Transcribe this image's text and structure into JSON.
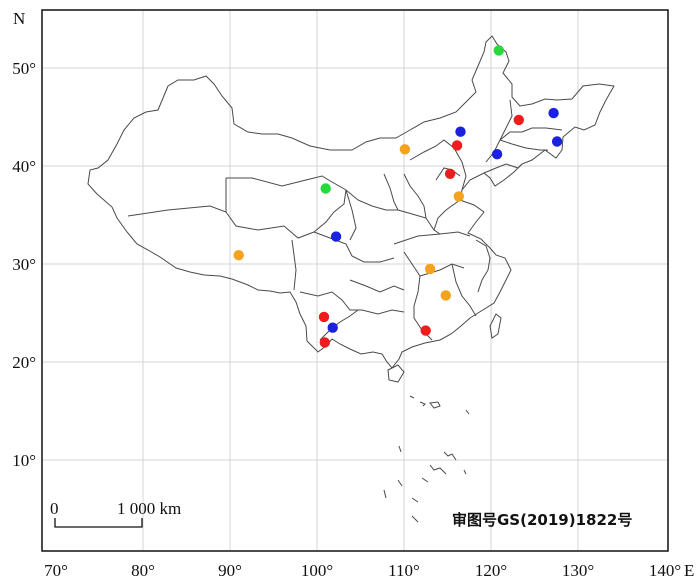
{
  "map": {
    "x_axis": {
      "ticks": [
        {
          "value": 70,
          "label": "70°"
        },
        {
          "value": 80,
          "label": "80°"
        },
        {
          "value": 90,
          "label": "90°"
        },
        {
          "value": 100,
          "label": "100°"
        },
        {
          "value": 110,
          "label": "110°"
        },
        {
          "value": 120,
          "label": "120°"
        },
        {
          "value": 130,
          "label": "130°"
        },
        {
          "value": 140,
          "label": "140°"
        }
      ],
      "letter": "E"
    },
    "y_axis": {
      "ticks": [
        {
          "value": 10,
          "label": "10°"
        },
        {
          "value": 20,
          "label": "20°"
        },
        {
          "value": 30,
          "label": "30°"
        },
        {
          "value": 40,
          "label": "40°"
        },
        {
          "value": 50,
          "label": "50°"
        }
      ],
      "letter": "N"
    },
    "scale_bar": {
      "start_label": "0",
      "end_label": "1 000 km"
    },
    "approval_number": "审图号GS(2019)1822号",
    "colors": {
      "red": "#ee1c1c",
      "blue": "#1a22dd",
      "orange": "#f5a21c",
      "green": "#27d93a"
    },
    "points": [
      {
        "lon": 120.9,
        "lat": 51.8,
        "color": "green"
      },
      {
        "lon": 101.0,
        "lat": 37.7,
        "color": "green"
      },
      {
        "lon": 116.5,
        "lat": 43.5,
        "color": "blue"
      },
      {
        "lon": 127.2,
        "lat": 45.4,
        "color": "blue"
      },
      {
        "lon": 127.6,
        "lat": 42.5,
        "color": "blue"
      },
      {
        "lon": 120.7,
        "lat": 41.2,
        "color": "blue"
      },
      {
        "lon": 102.2,
        "lat": 32.8,
        "color": "blue"
      },
      {
        "lon": 101.8,
        "lat": 23.5,
        "color": "blue"
      },
      {
        "lon": 123.2,
        "lat": 44.7,
        "color": "red"
      },
      {
        "lon": 116.1,
        "lat": 42.1,
        "color": "red"
      },
      {
        "lon": 115.3,
        "lat": 39.2,
        "color": "red"
      },
      {
        "lon": 100.8,
        "lat": 24.6,
        "color": "red"
      },
      {
        "lon": 100.9,
        "lat": 22.0,
        "color": "red"
      },
      {
        "lon": 112.5,
        "lat": 23.2,
        "color": "red"
      },
      {
        "lon": 110.1,
        "lat": 41.7,
        "color": "orange"
      },
      {
        "lon": 116.3,
        "lat": 36.9,
        "color": "orange"
      },
      {
        "lon": 91.0,
        "lat": 30.9,
        "color": "orange"
      },
      {
        "lon": 113.0,
        "lat": 29.5,
        "color": "orange"
      },
      {
        "lon": 114.8,
        "lat": 26.8,
        "color": "orange"
      }
    ]
  }
}
